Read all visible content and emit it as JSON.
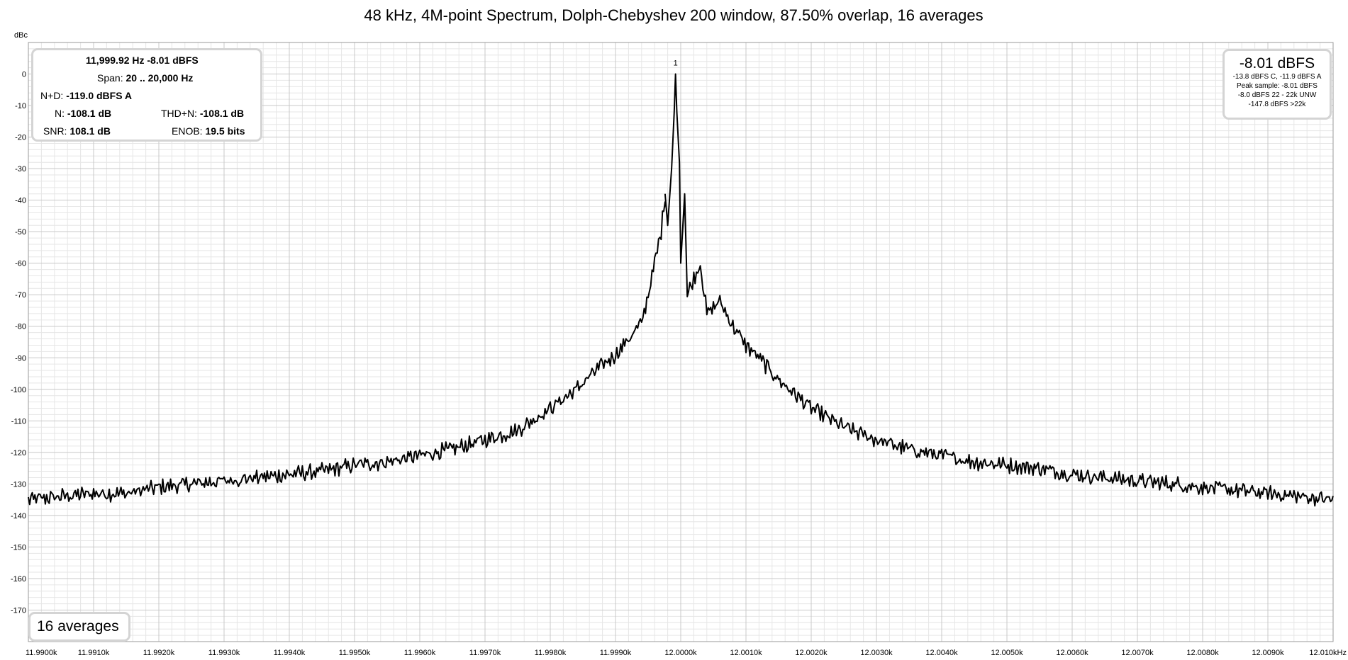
{
  "chart_data": {
    "type": "line",
    "title": "48 kHz, 4M-point Spectrum, Dolph-Chebyshev 200 window, 87.50% overlap, 16 averages",
    "ylabel": "dBc",
    "xlabel": "",
    "ylim": [
      -180,
      10
    ],
    "xlim": [
      11990.0,
      12010.0
    ],
    "grid": true,
    "legend": "none",
    "yticks": [
      0,
      -10,
      -20,
      -30,
      -40,
      -50,
      -60,
      -70,
      -80,
      -90,
      -100,
      -110,
      -120,
      -130,
      -140,
      -150,
      -160,
      -170
    ],
    "xticks": [
      11990.0,
      11991.0,
      11992.0,
      11993.0,
      11994.0,
      11995.0,
      11996.0,
      11997.0,
      11998.0,
      11999.0,
      12000.0,
      12001.0,
      12002.0,
      12003.0,
      12004.0,
      12005.0,
      12006.0,
      12007.0,
      12008.0,
      12009.0,
      12010.0
    ],
    "xtick_labels": [
      "11.9900k",
      "11.9910k",
      "11.9920k",
      "11.9930k",
      "11.9940k",
      "11.9950k",
      "11.9960k",
      "11.9970k",
      "11.9980k",
      "11.9990k",
      "12.0000k",
      "12.0010k",
      "12.0020k",
      "12.0030k",
      "12.0040k",
      "12.0050k",
      "12.0060k",
      "12.0070k",
      "12.0080k",
      "12.0090k",
      "12.010kHz"
    ],
    "series": [
      {
        "values": [
          [
            11990.0,
            -135
          ],
          [
            11990.5,
            -134
          ],
          [
            11991.0,
            -133
          ],
          [
            11991.5,
            -133
          ],
          [
            11992.0,
            -131
          ],
          [
            11992.5,
            -130
          ],
          [
            11993.0,
            -129
          ],
          [
            11993.5,
            -128
          ],
          [
            11994.0,
            -127
          ],
          [
            11994.5,
            -126
          ],
          [
            11995.0,
            -124
          ],
          [
            11995.5,
            -123
          ],
          [
            11996.0,
            -121
          ],
          [
            11996.5,
            -119
          ],
          [
            11997.0,
            -116
          ],
          [
            11997.5,
            -113
          ],
          [
            11998.0,
            -106
          ],
          [
            11998.4,
            -100
          ],
          [
            11998.7,
            -94
          ],
          [
            11999.0,
            -89
          ],
          [
            11999.2,
            -84
          ],
          [
            11999.4,
            -79
          ],
          [
            11999.5,
            -70
          ],
          [
            11999.6,
            -60
          ],
          [
            11999.7,
            -50
          ],
          [
            11999.76,
            -38
          ],
          [
            11999.8,
            -48
          ],
          [
            11999.86,
            -30
          ],
          [
            11999.9,
            -12
          ],
          [
            11999.92,
            0
          ],
          [
            11999.94,
            -12
          ],
          [
            11999.98,
            -28
          ],
          [
            12000.0,
            -60
          ],
          [
            12000.06,
            -38
          ],
          [
            12000.1,
            -70
          ],
          [
            12000.3,
            -60
          ],
          [
            12000.4,
            -76
          ],
          [
            12000.6,
            -72
          ],
          [
            12000.8,
            -80
          ],
          [
            12001.0,
            -86
          ],
          [
            12001.2,
            -90
          ],
          [
            12001.5,
            -97
          ],
          [
            12002.0,
            -106
          ],
          [
            12002.5,
            -112
          ],
          [
            12003.0,
            -116
          ],
          [
            12003.5,
            -119
          ],
          [
            12004.0,
            -121
          ],
          [
            12004.5,
            -123
          ],
          [
            12005.0,
            -124
          ],
          [
            12005.5,
            -125
          ],
          [
            12006.0,
            -127
          ],
          [
            12006.5,
            -128
          ],
          [
            12007.0,
            -129
          ],
          [
            12007.5,
            -130
          ],
          [
            12008.0,
            -131
          ],
          [
            12008.5,
            -132
          ],
          [
            12009.0,
            -133
          ],
          [
            12009.5,
            -134
          ],
          [
            12010.0,
            -135
          ]
        ]
      }
    ],
    "markers": [
      {
        "label": "1",
        "x": 11999.92,
        "y": -8.01
      }
    ]
  },
  "stats_panel": {
    "peak_readout": "11,999.92 Hz  -8.01 dBFS",
    "span_label": "Span:",
    "span_value": "20 .. 20,000 Hz",
    "nd_label": "N+D:",
    "nd_value": "-119.0 dBFS A",
    "n_label": "N:",
    "n_value": "-108.1 dB",
    "thdn_label": "THD+N:",
    "thdn_value": "-108.1 dB",
    "snr_label": "SNR:",
    "snr_value": "108.1 dB",
    "enob_label": "ENOB:",
    "enob_value": "19.5 bits"
  },
  "level_panel": {
    "main": "-8.01 dBFS",
    "line1": "-13.8 dBFS C, -11.9 dBFS A",
    "line2": "Peak sample: -8.01 dBFS",
    "line3": "-8.0 dBFS 22 - 22k UNW",
    "line4": "-147.8 dBFS >22k"
  },
  "averages_badge": "16 averages",
  "colors": {
    "trace": "#000000",
    "major_grid": "#c8c8c8",
    "minor_grid": "#e6e6e6",
    "panel_border": "#d4d4d4"
  }
}
